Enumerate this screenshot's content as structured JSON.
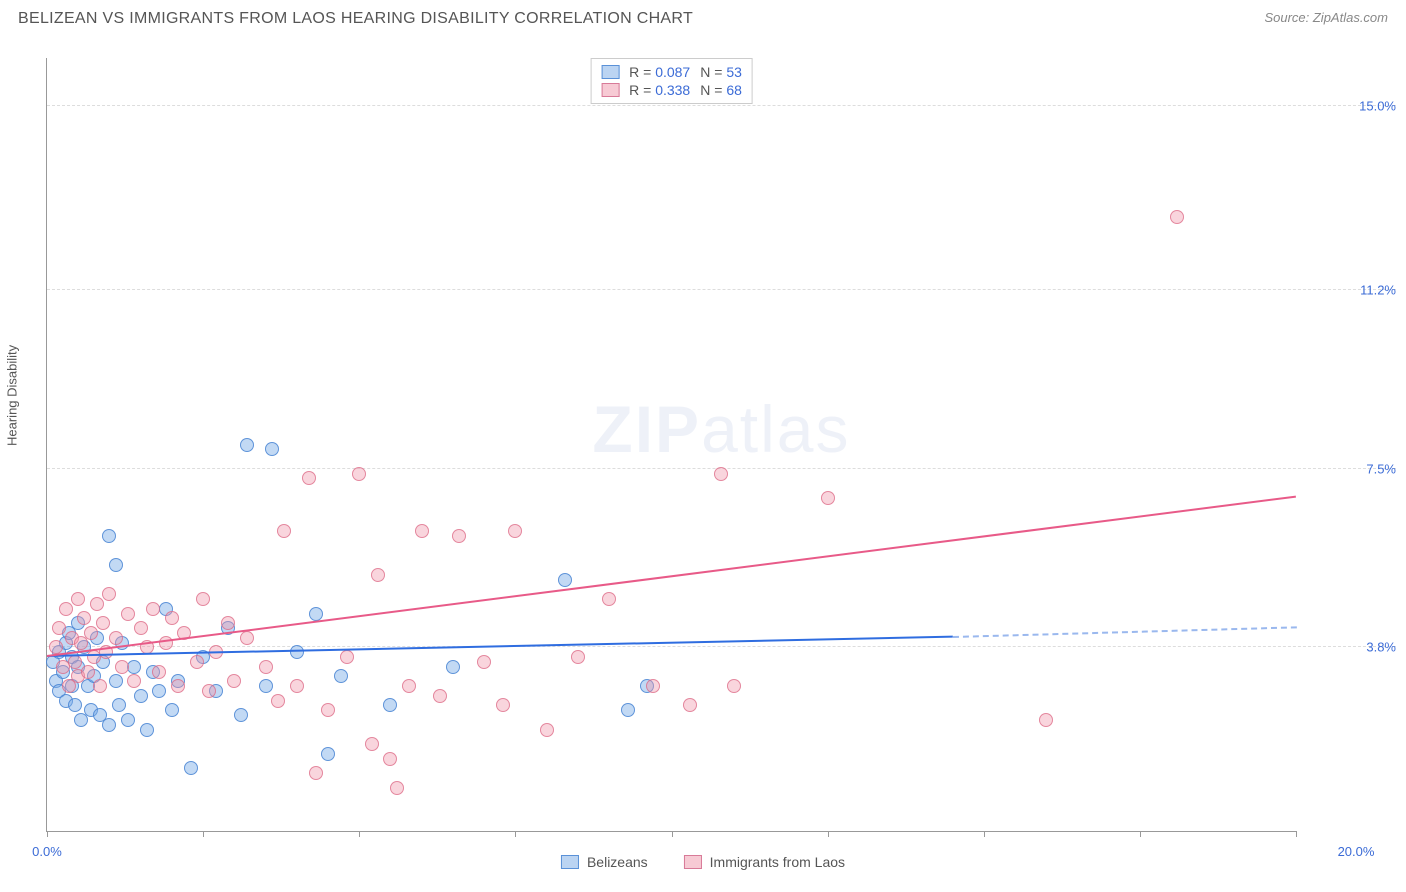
{
  "header": {
    "title": "BELIZEAN VS IMMIGRANTS FROM LAOS HEARING DISABILITY CORRELATION CHART",
    "source_prefix": "Source: ",
    "source_name": "ZipAtlas.com"
  },
  "watermark": {
    "zip": "ZIP",
    "atlas": "atlas"
  },
  "chart": {
    "type": "scatter",
    "ylabel": "Hearing Disability",
    "xlim": [
      0,
      20
    ],
    "ylim": [
      0,
      16
    ],
    "xtick_positions": [
      0,
      2.5,
      5,
      7.5,
      10,
      12.5,
      15,
      17.5,
      20
    ],
    "xtick_labels_shown": {
      "0": "0.0%",
      "20": "20.0%"
    },
    "ytick_gridlines": [
      3.8,
      7.5,
      11.2,
      15.0
    ],
    "ytick_labels": [
      "3.8%",
      "7.5%",
      "11.2%",
      "15.0%"
    ],
    "background_color": "#ffffff",
    "grid_color": "#dddddd",
    "grid_dash": true,
    "axis_color": "#999999",
    "value_text_color": "#3b6bd6",
    "label_text_color": "#555555",
    "title_fontsize": 16,
    "tick_fontsize": 13,
    "point_radius": 7,
    "series": [
      {
        "name": "Belizeans",
        "key": "blue",
        "fill_color": "rgba(120,170,230,0.45)",
        "stroke_color": "rgba(70,130,210,0.8)",
        "line_color": "#2f6de0",
        "R": "0.087",
        "N": "53",
        "regression": {
          "x0": 0,
          "y0": 3.6,
          "x_solid_end": 14.5,
          "y_solid_end": 4.0,
          "x_dash_end": 20,
          "y_dash_end": 4.2
        },
        "points": [
          [
            0.1,
            3.5
          ],
          [
            0.15,
            3.1
          ],
          [
            0.2,
            3.7
          ],
          [
            0.2,
            2.9
          ],
          [
            0.25,
            3.3
          ],
          [
            0.3,
            3.9
          ],
          [
            0.3,
            2.7
          ],
          [
            0.35,
            4.1
          ],
          [
            0.4,
            3.0
          ],
          [
            0.4,
            3.6
          ],
          [
            0.45,
            2.6
          ],
          [
            0.5,
            3.4
          ],
          [
            0.5,
            4.3
          ],
          [
            0.55,
            2.3
          ],
          [
            0.6,
            3.8
          ],
          [
            0.65,
            3.0
          ],
          [
            0.7,
            2.5
          ],
          [
            0.75,
            3.2
          ],
          [
            0.8,
            4.0
          ],
          [
            0.85,
            2.4
          ],
          [
            0.9,
            3.5
          ],
          [
            1.0,
            2.2
          ],
          [
            1.0,
            6.1
          ],
          [
            1.1,
            3.1
          ],
          [
            1.1,
            5.5
          ],
          [
            1.15,
            2.6
          ],
          [
            1.2,
            3.9
          ],
          [
            1.3,
            2.3
          ],
          [
            1.4,
            3.4
          ],
          [
            1.5,
            2.8
          ],
          [
            1.6,
            2.1
          ],
          [
            1.7,
            3.3
          ],
          [
            1.8,
            2.9
          ],
          [
            1.9,
            4.6
          ],
          [
            2.0,
            2.5
          ],
          [
            2.1,
            3.1
          ],
          [
            2.3,
            1.3
          ],
          [
            2.5,
            3.6
          ],
          [
            2.7,
            2.9
          ],
          [
            2.9,
            4.2
          ],
          [
            3.1,
            2.4
          ],
          [
            3.2,
            8.0
          ],
          [
            3.5,
            3.0
          ],
          [
            3.6,
            7.9
          ],
          [
            4.0,
            3.7
          ],
          [
            4.3,
            4.5
          ],
          [
            4.5,
            1.6
          ],
          [
            4.7,
            3.2
          ],
          [
            5.5,
            2.6
          ],
          [
            6.5,
            3.4
          ],
          [
            8.3,
            5.2
          ],
          [
            9.3,
            2.5
          ],
          [
            9.6,
            3.0
          ]
        ]
      },
      {
        "name": "Immigrants from Laos",
        "key": "pink",
        "fill_color": "rgba(240,150,170,0.40)",
        "stroke_color": "rgba(220,100,130,0.7)",
        "line_color": "#e85a88",
        "R": "0.338",
        "N": "68",
        "regression": {
          "x0": 0,
          "y0": 3.6,
          "x_solid_end": 20,
          "y_solid_end": 6.9
        },
        "points": [
          [
            0.15,
            3.8
          ],
          [
            0.2,
            4.2
          ],
          [
            0.25,
            3.4
          ],
          [
            0.3,
            4.6
          ],
          [
            0.35,
            3.0
          ],
          [
            0.4,
            4.0
          ],
          [
            0.45,
            3.5
          ],
          [
            0.5,
            4.8
          ],
          [
            0.5,
            3.2
          ],
          [
            0.55,
            3.9
          ],
          [
            0.6,
            4.4
          ],
          [
            0.65,
            3.3
          ],
          [
            0.7,
            4.1
          ],
          [
            0.75,
            3.6
          ],
          [
            0.8,
            4.7
          ],
          [
            0.85,
            3.0
          ],
          [
            0.9,
            4.3
          ],
          [
            0.95,
            3.7
          ],
          [
            1.0,
            4.9
          ],
          [
            1.1,
            4.0
          ],
          [
            1.2,
            3.4
          ],
          [
            1.3,
            4.5
          ],
          [
            1.4,
            3.1
          ],
          [
            1.5,
            4.2
          ],
          [
            1.6,
            3.8
          ],
          [
            1.7,
            4.6
          ],
          [
            1.8,
            3.3
          ],
          [
            1.9,
            3.9
          ],
          [
            2.0,
            4.4
          ],
          [
            2.1,
            3.0
          ],
          [
            2.2,
            4.1
          ],
          [
            2.4,
            3.5
          ],
          [
            2.5,
            4.8
          ],
          [
            2.6,
            2.9
          ],
          [
            2.7,
            3.7
          ],
          [
            2.9,
            4.3
          ],
          [
            3.0,
            3.1
          ],
          [
            3.2,
            4.0
          ],
          [
            3.5,
            3.4
          ],
          [
            3.7,
            2.7
          ],
          [
            3.8,
            6.2
          ],
          [
            4.0,
            3.0
          ],
          [
            4.2,
            7.3
          ],
          [
            4.3,
            1.2
          ],
          [
            4.5,
            2.5
          ],
          [
            4.8,
            3.6
          ],
          [
            5.0,
            7.4
          ],
          [
            5.2,
            1.8
          ],
          [
            5.3,
            5.3
          ],
          [
            5.5,
            1.5
          ],
          [
            5.6,
            0.9
          ],
          [
            5.8,
            3.0
          ],
          [
            6.0,
            6.2
          ],
          [
            6.3,
            2.8
          ],
          [
            6.6,
            6.1
          ],
          [
            7.0,
            3.5
          ],
          [
            7.3,
            2.6
          ],
          [
            7.5,
            6.2
          ],
          [
            8.0,
            2.1
          ],
          [
            8.5,
            3.6
          ],
          [
            9.0,
            4.8
          ],
          [
            9.7,
            3.0
          ],
          [
            10.3,
            2.6
          ],
          [
            10.8,
            7.4
          ],
          [
            11.0,
            3.0
          ],
          [
            12.5,
            6.9
          ],
          [
            16.0,
            2.3
          ],
          [
            18.1,
            12.7
          ]
        ]
      }
    ],
    "stats_legend_labels": {
      "R_prefix": "R = ",
      "N_prefix": "N = "
    },
    "bottom_legend": [
      "Belizeans",
      "Immigrants from Laos"
    ]
  }
}
